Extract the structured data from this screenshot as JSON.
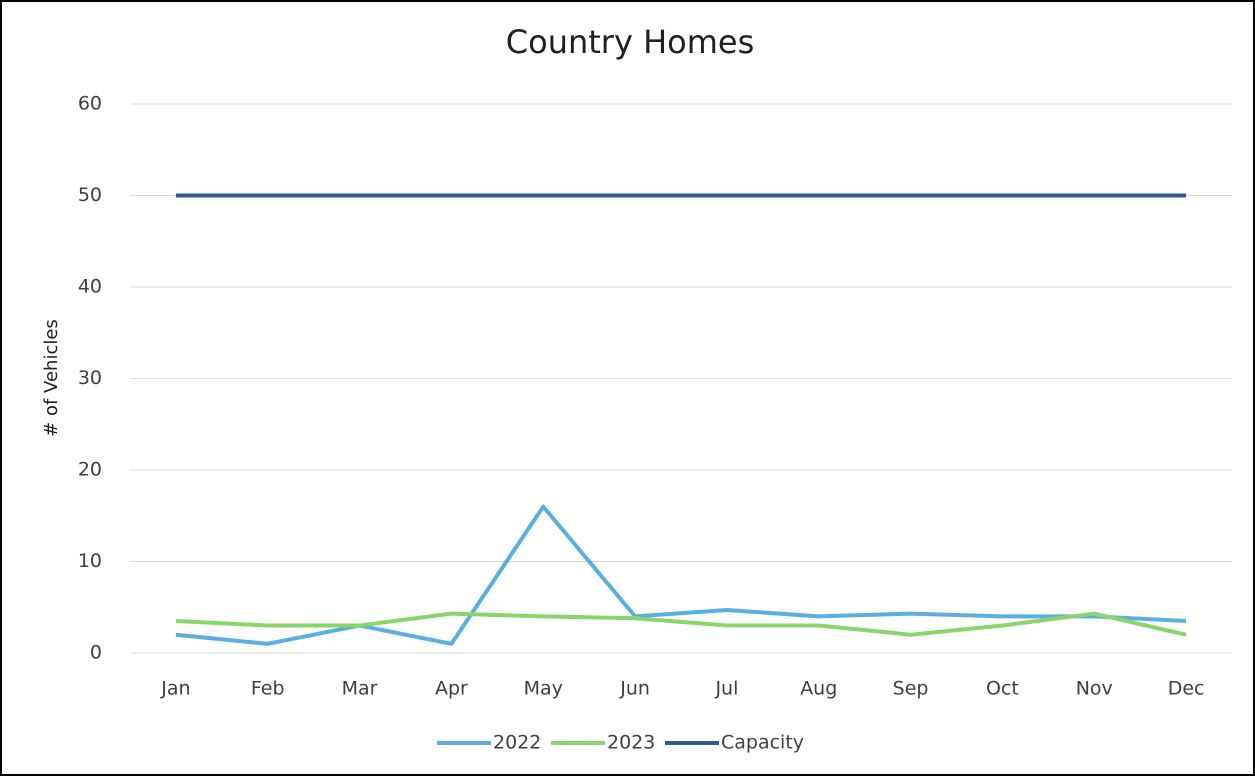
{
  "chart_data": {
    "type": "line",
    "title": "Country Homes",
    "y_label": "# of Vehicles",
    "categories": [
      "Jan",
      "Feb",
      "Mar",
      "Apr",
      "May",
      "Jun",
      "Jul",
      "Aug",
      "Sep",
      "Oct",
      "Nov",
      "Dec"
    ],
    "series": [
      {
        "name": "2022",
        "color": "#5aafe0",
        "values": [
          2,
          1,
          3,
          1,
          16,
          4,
          4.7,
          4,
          4.3,
          4,
          4,
          3.5
        ]
      },
      {
        "name": "2023",
        "color": "#88d66a",
        "values": [
          3.5,
          3,
          3,
          4.3,
          4,
          3.8,
          3,
          3,
          2,
          3,
          4.3,
          2
        ]
      },
      {
        "name": "Capacity",
        "color": "#2e5a98",
        "values": [
          50,
          50,
          50,
          50,
          50,
          50,
          50,
          50,
          50,
          50,
          50,
          50
        ]
      }
    ],
    "ylim": [
      0,
      60
    ],
    "yticks": [
      0,
      10,
      20,
      30,
      40,
      50,
      60
    ],
    "grid": true,
    "legend": "bottom"
  }
}
